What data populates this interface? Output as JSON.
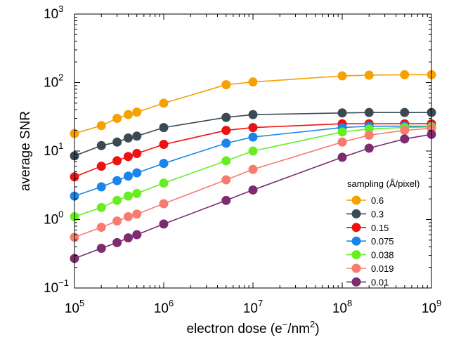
{
  "chart_data": {
    "type": "line",
    "title": "",
    "xlabel": {
      "pre": "electron dose (e",
      "sup1": "−",
      "mid": "/nm",
      "sup2": "2",
      "post": ")"
    },
    "ylabel": "average SNR",
    "x_scale": "log",
    "y_scale": "log",
    "xlim": [
      100000,
      1000000000
    ],
    "ylim": [
      0.1,
      1000
    ],
    "x_ticks": [
      {
        "value": 100000,
        "base": "10",
        "exp": "5"
      },
      {
        "value": 1000000,
        "base": "10",
        "exp": "6"
      },
      {
        "value": 10000000,
        "base": "10",
        "exp": "7"
      },
      {
        "value": 100000000,
        "base": "10",
        "exp": "8"
      },
      {
        "value": 1000000000,
        "base": "10",
        "exp": "9"
      }
    ],
    "y_ticks": [
      {
        "value": 0.1,
        "base": "10",
        "exp": "−1"
      },
      {
        "value": 1,
        "base": "10",
        "exp": "0"
      },
      {
        "value": 10,
        "base": "10",
        "exp": "1"
      },
      {
        "value": 100,
        "base": "10",
        "exp": "2"
      },
      {
        "value": 1000,
        "base": "10",
        "exp": "3"
      }
    ],
    "grid": false,
    "legend": {
      "title": "sampling (Å/pixel)",
      "position": "bottom-right"
    },
    "x": [
      100000,
      200000,
      300000,
      400000,
      500000,
      1000000,
      5000000,
      10000000,
      100000000,
      200000000,
      500000000,
      1000000000
    ],
    "series": [
      {
        "name": "0.6",
        "color": "#f5a100",
        "values": [
          18,
          23.5,
          30,
          34,
          37,
          50,
          93,
          102,
          125,
          128,
          130,
          130
        ]
      },
      {
        "name": "0.3",
        "color": "#3a4a55",
        "values": [
          8.5,
          12,
          13.5,
          15.5,
          16.5,
          22,
          31,
          34,
          36,
          36.5,
          36.5,
          36.5
        ]
      },
      {
        "name": "0.15",
        "color": "#ee1111",
        "values": [
          4.2,
          6,
          7.2,
          8.3,
          9.2,
          12.5,
          20,
          22,
          25,
          25,
          25,
          25
        ]
      },
      {
        "name": "0.075",
        "color": "#1a85e8",
        "values": [
          2.2,
          3,
          3.7,
          4.3,
          4.8,
          6.6,
          13,
          16,
          22,
          23,
          23,
          23
        ]
      },
      {
        "name": "0.038",
        "color": "#66ee22",
        "values": [
          1.1,
          1.5,
          1.9,
          2.2,
          2.4,
          3.4,
          7.2,
          10,
          19,
          21,
          22,
          22.5
        ]
      },
      {
        "name": "0.019",
        "color": "#f77b6f",
        "values": [
          0.55,
          0.77,
          0.95,
          1.1,
          1.2,
          1.7,
          3.8,
          5.4,
          13.5,
          17,
          20,
          21.5
        ]
      },
      {
        "name": "0.01",
        "color": "#7c2c6f",
        "values": [
          0.27,
          0.38,
          0.46,
          0.54,
          0.6,
          0.86,
          1.9,
          2.7,
          8.1,
          11,
          15,
          17.5
        ]
      }
    ]
  }
}
